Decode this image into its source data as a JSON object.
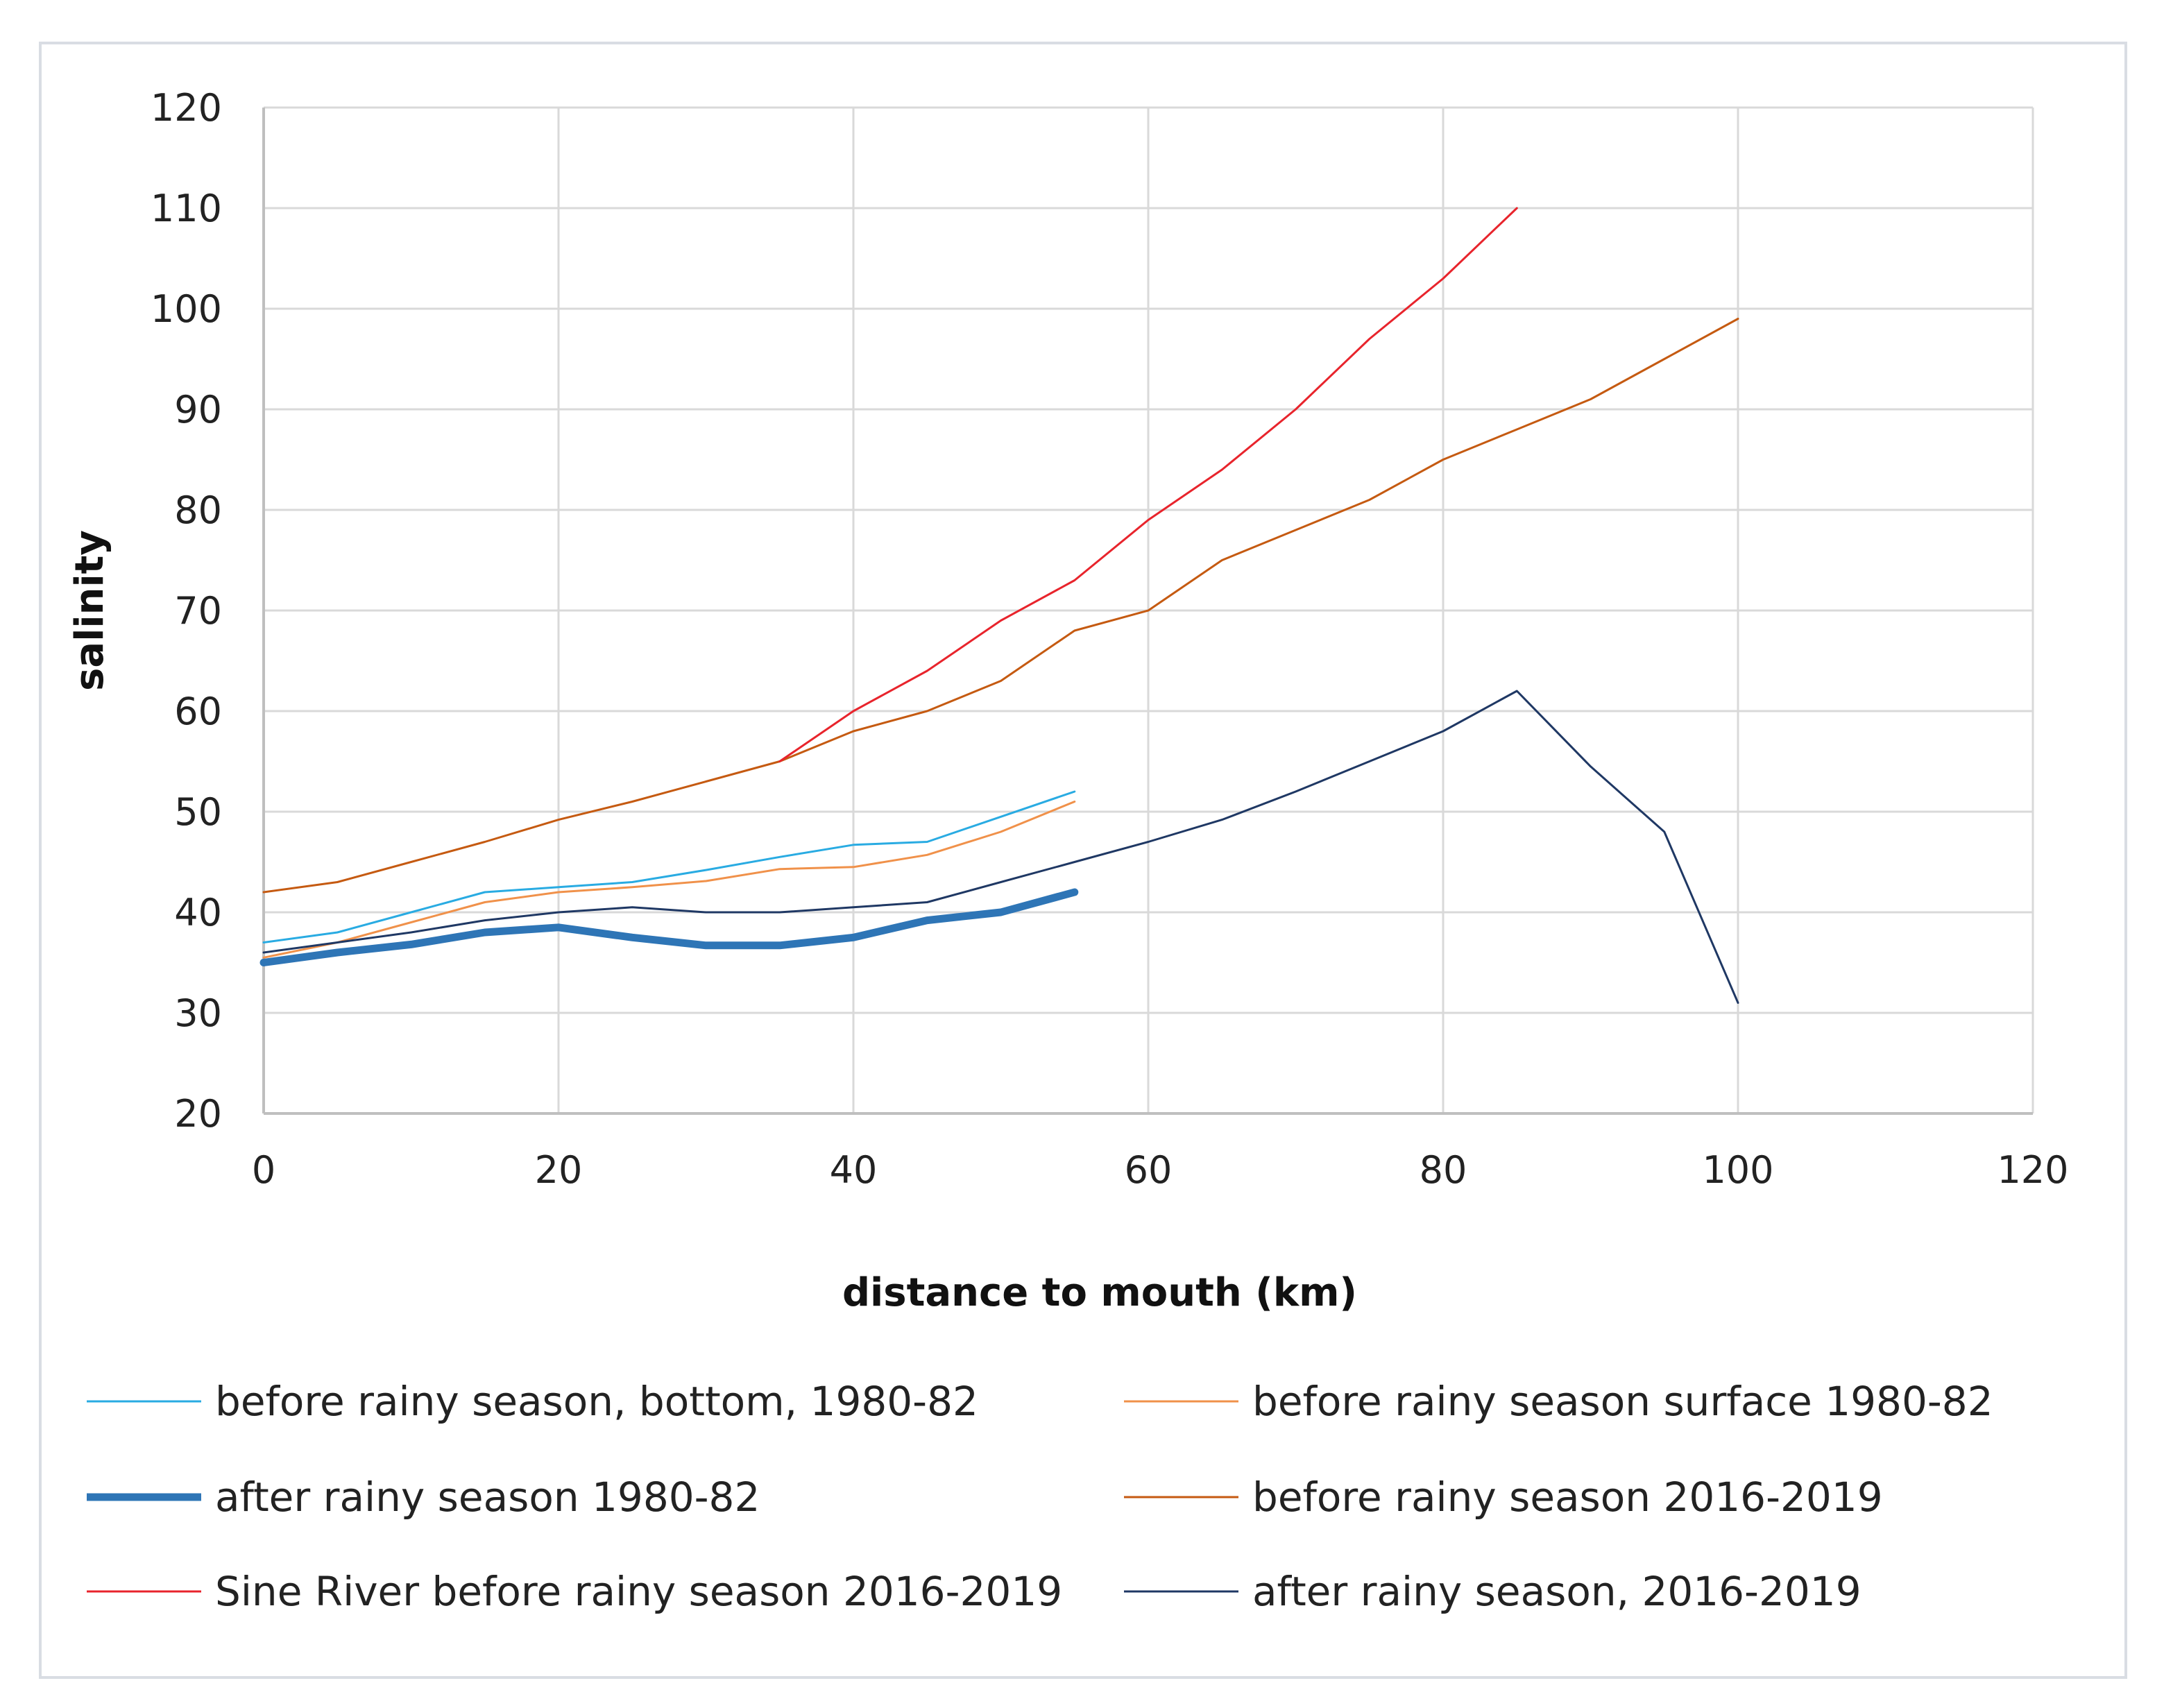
{
  "chart_data": {
    "type": "line",
    "xlabel": "distance to mouth (km)",
    "ylabel": "salinity",
    "xlim": [
      0,
      120
    ],
    "ylim": [
      20,
      120
    ],
    "xticks": [
      0,
      20,
      40,
      60,
      80,
      100,
      120
    ],
    "yticks": [
      20,
      30,
      40,
      50,
      60,
      70,
      80,
      90,
      100,
      110,
      120
    ],
    "grid": true,
    "legend_position": "bottom",
    "series": [
      {
        "name": "before rainy season, bottom, 1980-82",
        "color": "#29abe2",
        "width": 3,
        "x": [
          0,
          5,
          10,
          15,
          20,
          25,
          30,
          35,
          40,
          45,
          50,
          55
        ],
        "y": [
          37,
          38,
          40,
          42,
          42.5,
          43,
          44.2,
          45.5,
          46.7,
          47,
          49.5,
          52
        ]
      },
      {
        "name": "before rainy season surface 1980-82",
        "color": "#f0914a",
        "width": 3,
        "x": [
          0,
          5,
          10,
          15,
          20,
          25,
          30,
          35,
          40,
          45,
          50,
          55
        ],
        "y": [
          35.5,
          37,
          39,
          41,
          42,
          42.5,
          43.1,
          44.3,
          44.5,
          45.7,
          48,
          51
        ]
      },
      {
        "name": "after rainy season 1980-82",
        "color": "#2e75b6",
        "width": 11,
        "x": [
          0,
          5,
          10,
          15,
          20,
          25,
          30,
          35,
          40,
          45,
          50,
          55
        ],
        "y": [
          35,
          36,
          36.8,
          38,
          38.5,
          37.5,
          36.7,
          36.7,
          37.5,
          39.2,
          40,
          42
        ]
      },
      {
        "name": "before rainy season 2016-2019",
        "color": "#c55a11",
        "width": 3,
        "x": [
          0,
          5,
          10,
          15,
          20,
          25,
          30,
          35,
          40,
          45,
          50,
          55,
          60,
          65,
          70,
          75,
          80,
          85,
          90,
          95,
          100
        ],
        "y": [
          42,
          43,
          45,
          47,
          49.2,
          51,
          53,
          55,
          58,
          60,
          63,
          68,
          70,
          75,
          78,
          81,
          85,
          88,
          91,
          95,
          99
        ]
      },
      {
        "name": "Sine River before rainy season 2016-2019",
        "color": "#e8242c",
        "width": 3,
        "x": [
          35,
          40,
          45,
          50,
          55,
          60,
          65,
          70,
          75,
          80,
          85
        ],
        "y": [
          55,
          60,
          64,
          69,
          73,
          79,
          84,
          90,
          97,
          103,
          110
        ]
      },
      {
        "name": "after rainy season, 2016-2019",
        "color": "#1f3864",
        "width": 3,
        "x": [
          0,
          5,
          10,
          15,
          20,
          25,
          30,
          35,
          40,
          45,
          50,
          55,
          60,
          65,
          70,
          75,
          80,
          85,
          90,
          95,
          100
        ],
        "y": [
          36,
          37,
          38,
          39.2,
          40,
          40.5,
          40,
          40,
          40.5,
          41,
          43,
          45,
          47,
          49.2,
          52,
          55,
          58,
          62,
          54.5,
          48,
          31
        ]
      }
    ]
  }
}
